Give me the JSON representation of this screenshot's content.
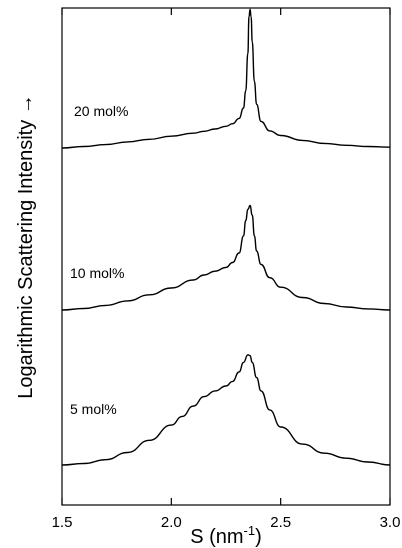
{
  "chart_data": {
    "type": "line",
    "title": "",
    "xlabel": "S (nm",
    "xlabel_sup": "-1",
    "xlabel_tail": ")",
    "ylabel": "Logarithmic Scattering Intensity",
    "ylabel_arrow": "→",
    "xlim": [
      1.5,
      3.0
    ],
    "xticks": [
      "1.5",
      "2.0",
      "2.5",
      "3.0"
    ],
    "yaxis_ticks": false,
    "grid": false,
    "legend": "none",
    "line_color": "#000000",
    "series": [
      {
        "name": "20 mol%",
        "x": [
          1.5,
          1.6,
          1.7,
          1.8,
          1.9,
          2.0,
          2.1,
          2.15,
          2.2,
          2.25,
          2.28,
          2.31,
          2.33,
          2.34,
          2.35,
          2.355,
          2.36,
          2.365,
          2.37,
          2.38,
          2.39,
          2.41,
          2.45,
          2.5,
          2.6,
          2.7,
          2.8,
          2.9,
          3.0
        ],
        "y": [
          0.0,
          0.04,
          0.09,
          0.16,
          0.23,
          0.31,
          0.39,
          0.44,
          0.5,
          0.57,
          0.64,
          0.78,
          1.05,
          1.5,
          2.5,
          3.45,
          3.65,
          3.45,
          2.8,
          1.75,
          1.15,
          0.7,
          0.45,
          0.33,
          0.2,
          0.12,
          0.07,
          0.04,
          0.02
        ]
      },
      {
        "name": "10 mol%",
        "x": [
          1.5,
          1.6,
          1.7,
          1.8,
          1.9,
          2.0,
          2.1,
          2.15,
          2.2,
          2.25,
          2.28,
          2.31,
          2.33,
          2.34,
          2.35,
          2.36,
          2.37,
          2.38,
          2.39,
          2.41,
          2.45,
          2.5,
          2.6,
          2.7,
          2.8,
          2.9,
          3.0
        ],
        "y": [
          0.0,
          0.04,
          0.12,
          0.24,
          0.4,
          0.58,
          0.79,
          0.92,
          1.02,
          1.12,
          1.25,
          1.5,
          1.95,
          2.35,
          2.65,
          2.75,
          2.5,
          1.95,
          1.55,
          1.2,
          0.85,
          0.6,
          0.33,
          0.17,
          0.08,
          0.03,
          0.0
        ]
      },
      {
        "name": "5 mol%",
        "x": [
          1.5,
          1.6,
          1.7,
          1.8,
          1.9,
          2.0,
          2.05,
          2.1,
          2.15,
          2.2,
          2.25,
          2.28,
          2.31,
          2.33,
          2.35,
          2.36,
          2.37,
          2.39,
          2.41,
          2.45,
          2.5,
          2.6,
          2.7,
          2.8,
          2.9,
          3.0
        ],
        "y": [
          0.0,
          0.04,
          0.14,
          0.33,
          0.65,
          1.05,
          1.28,
          1.55,
          1.8,
          1.95,
          2.08,
          2.2,
          2.45,
          2.7,
          2.9,
          2.88,
          2.7,
          2.3,
          1.95,
          1.45,
          1.0,
          0.55,
          0.31,
          0.18,
          0.08,
          0.0
        ]
      }
    ]
  }
}
